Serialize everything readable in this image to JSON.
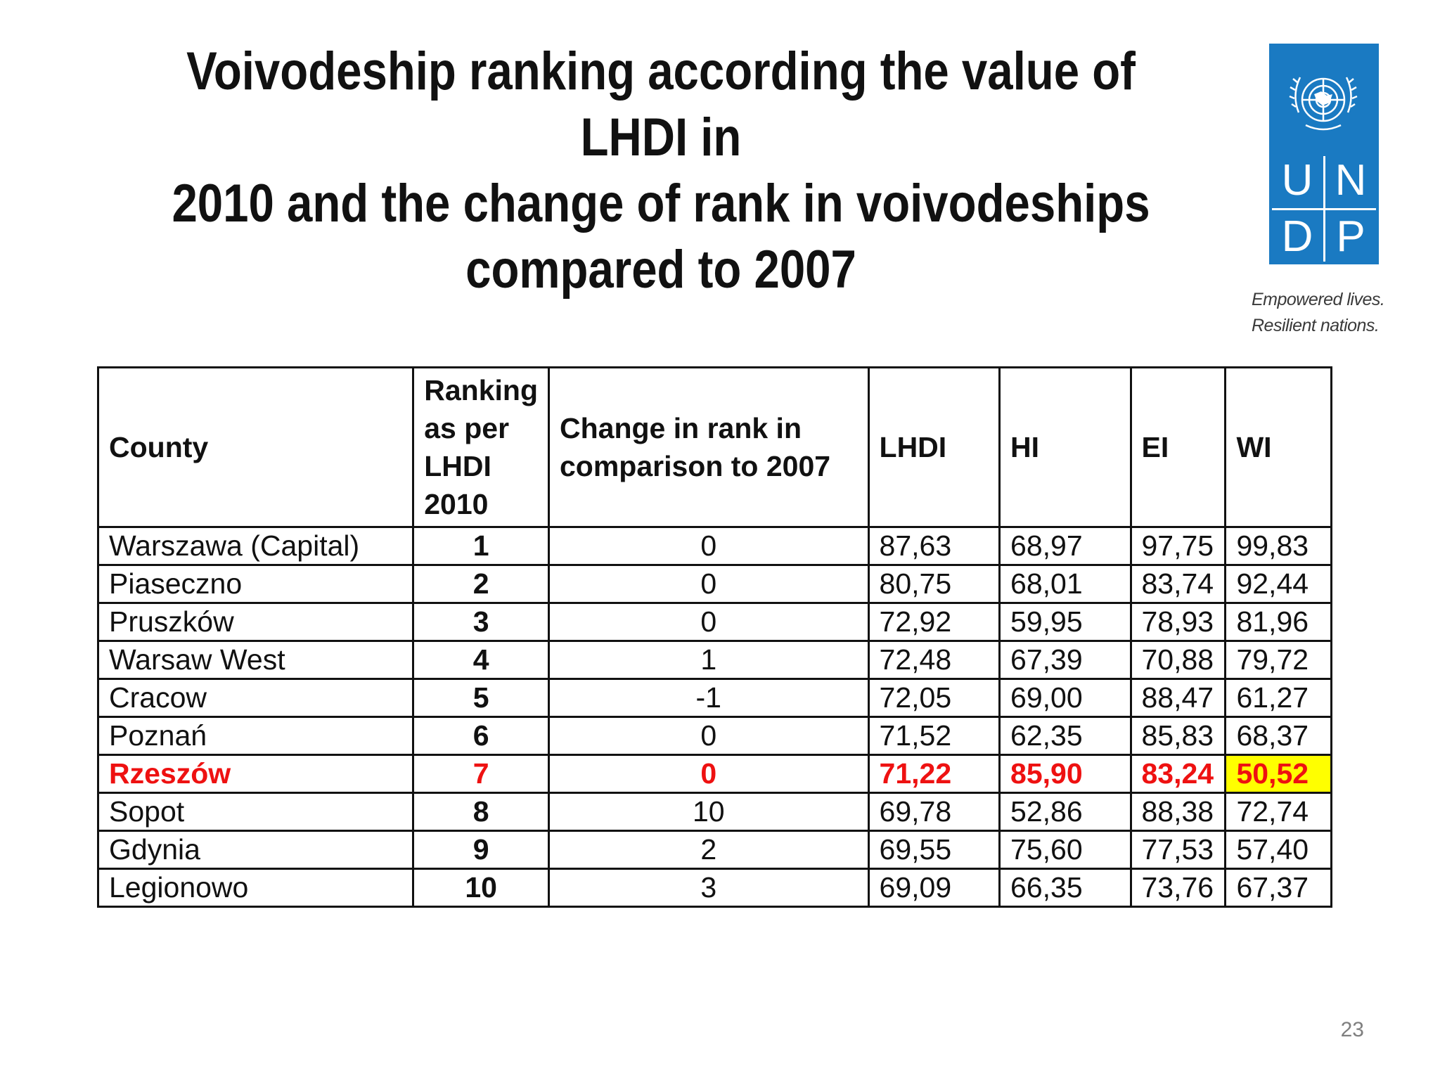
{
  "slide": {
    "title_lines": [
      "Voivodeship ranking according the value of LHDI in",
      "2010 and the change of rank in voivodeships",
      "compared to 2007"
    ],
    "page_number": "23"
  },
  "logo": {
    "letters": [
      "U",
      "N",
      "D",
      "P"
    ],
    "tagline_lines": [
      "Empowered lives.",
      "Resilient nations."
    ],
    "colors": {
      "background": "#1a7ac2",
      "foreground": "#ffffff"
    }
  },
  "table": {
    "headers": {
      "county": "County",
      "ranking_lines": [
        "Ranking",
        "as per",
        "LHDI",
        "2010"
      ],
      "change_lines": [
        "Change in rank in",
        "comparison to 2007"
      ],
      "lhdi": "LHDI",
      "hi": "HI",
      "ei": "EI",
      "wi": "WI"
    },
    "rows": [
      [
        "Warszawa (Capital)",
        "1",
        "0",
        "87,63",
        "68,97",
        "97,75",
        "99,83"
      ],
      [
        "Piaseczno",
        "2",
        "0",
        "80,75",
        "68,01",
        "83,74",
        "92,44"
      ],
      [
        "Pruszków",
        "3",
        "0",
        "72,92",
        "59,95",
        "78,93",
        "81,96"
      ],
      [
        "Warsaw West",
        "4",
        "1",
        "72,48",
        "67,39",
        "70,88",
        "79,72"
      ],
      [
        "Cracow",
        "5",
        "-1",
        "72,05",
        "69,00",
        "88,47",
        "61,27"
      ],
      [
        "Poznań",
        "6",
        "0",
        "71,52",
        "62,35",
        "85,83",
        "68,37"
      ],
      [
        "Rzeszów",
        "7",
        "0",
        "71,22",
        "85,90",
        "83,24",
        "50,52"
      ],
      [
        "Sopot",
        "8",
        "10",
        "69,78",
        "52,86",
        "88,38",
        "72,74"
      ],
      [
        "Gdynia",
        "9",
        "2",
        "69,55",
        "75,60",
        "77,53",
        "57,40"
      ],
      [
        "Legionowo",
        "10",
        "3",
        "69,09",
        "66,35",
        "73,76",
        "67,37"
      ]
    ],
    "highlight_colors": {
      "text": "#ee1111",
      "cell_background": "#ffff00"
    }
  }
}
